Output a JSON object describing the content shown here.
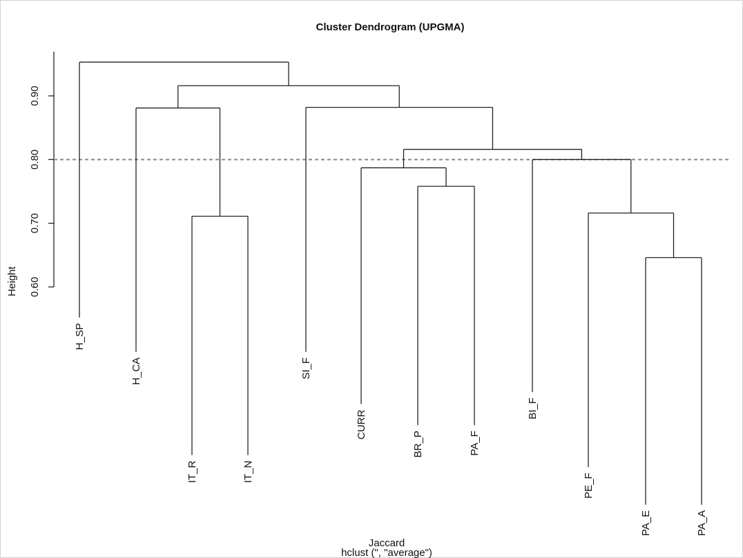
{
  "chart_data": {
    "type": "dendrogram",
    "title": "Cluster Dendrogram (UPGMA)",
    "ylabel": "Height",
    "xlabel": "Jaccard",
    "subtitle": "hclust (\", \"average\")",
    "yticks": [
      "0.60",
      "0.70",
      "0.80",
      "0.90"
    ],
    "ytick_values": [
      0.6,
      0.7,
      0.8,
      0.9
    ],
    "ylim": [
      0.6,
      0.95
    ],
    "cut_height": 0.8,
    "leaves": [
      {
        "id": "H_SP",
        "label": "H_SP",
        "height": 0.552
      },
      {
        "id": "H_CA",
        "label": "H_CA",
        "height": 0.498
      },
      {
        "id": "IT_R",
        "label": "IT_R",
        "height": 0.336
      },
      {
        "id": "IT_N",
        "label": "IT_N",
        "height": 0.336
      },
      {
        "id": "SI_F",
        "label": "SI_F",
        "height": 0.498
      },
      {
        "id": "CURR",
        "label": "CURR",
        "height": 0.416
      },
      {
        "id": "BR_P",
        "label": "BR_P",
        "height": 0.383
      },
      {
        "id": "PA_F",
        "label": "PA_F",
        "height": 0.383
      },
      {
        "id": "BI_F",
        "label": "BI_F",
        "height": 0.435
      },
      {
        "id": "PE_F",
        "label": "PE_F",
        "height": 0.317
      },
      {
        "id": "PA_E",
        "label": "PA_E",
        "height": 0.258
      },
      {
        "id": "PA_A",
        "label": "PA_A",
        "height": 0.258
      }
    ],
    "merges": [
      {
        "id": "m1",
        "left": "PA_E",
        "right": "PA_A",
        "height": 0.646
      },
      {
        "id": "m2",
        "left": "IT_R",
        "right": "IT_N",
        "height": 0.711
      },
      {
        "id": "m3",
        "left": "PE_F",
        "right": "m1",
        "height": 0.716
      },
      {
        "id": "m4",
        "left": "BR_P",
        "right": "PA_F",
        "height": 0.758
      },
      {
        "id": "m5",
        "left": "CURR",
        "right": "m4",
        "height": 0.787
      },
      {
        "id": "m6",
        "left": "BI_F",
        "right": "m3",
        "height": 0.8
      },
      {
        "id": "m7",
        "left": "m5",
        "right": "m6",
        "height": 0.816
      },
      {
        "id": "m8",
        "left": "H_CA",
        "right": "m2",
        "height": 0.881
      },
      {
        "id": "m9",
        "left": "SI_F",
        "right": "m7",
        "height": 0.882
      },
      {
        "id": "m10",
        "left": "m8",
        "right": "m9",
        "height": 0.916
      },
      {
        "id": "m11",
        "left": "H_SP",
        "right": "m10",
        "height": 0.953
      }
    ]
  }
}
